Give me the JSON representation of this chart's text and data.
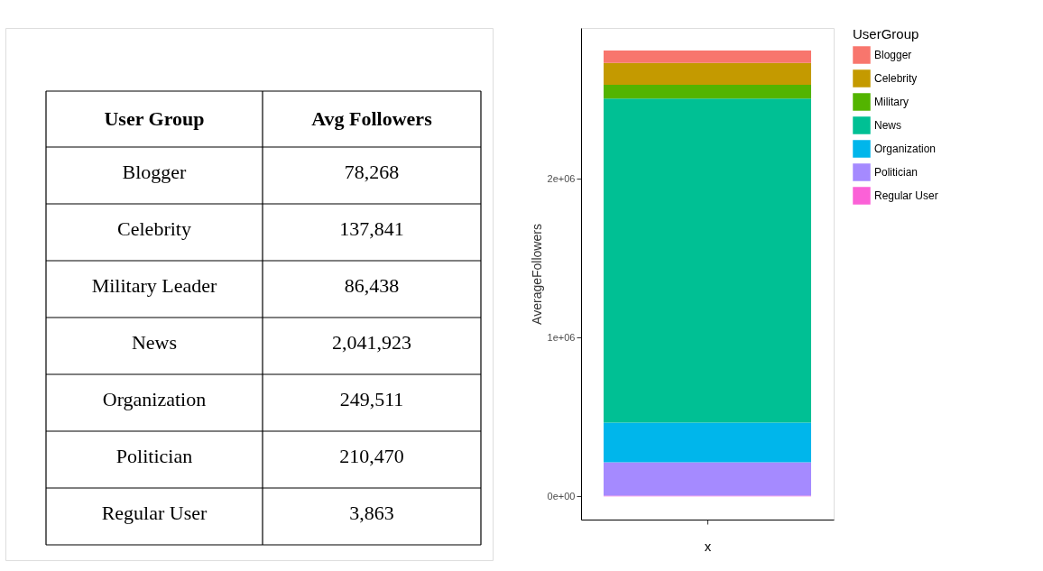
{
  "chart_data": [
    {
      "type": "other",
      "annotations": [
        "User Group",
        "Avg Followers",
        "Blogger",
        "78,268",
        "Celebrity",
        "137,841",
        "Military Leader",
        "86,438",
        "News",
        "2,041,923",
        "Organization",
        "249,511",
        "Politician",
        "210,470",
        "Regular User",
        "3,863"
      ]
    },
    {
      "type": "bar",
      "stacked": true,
      "categories": [
        null
      ],
      "xlabel": "x",
      "ylabel": "AverageFollowers",
      "legend_title": "UserGroup",
      "legend": "right",
      "grid": false,
      "ylim": [
        -147000,
        2950000
      ],
      "yticks": [
        {
          "value": 0,
          "label": "0e+00"
        },
        {
          "value": 1000000,
          "label": "1e+06"
        },
        {
          "value": 2000000,
          "label": "2e+06"
        }
      ],
      "series": [
        {
          "name": "Regular User",
          "color": "#fb61d7",
          "values": [
            3863
          ]
        },
        {
          "name": "Politician",
          "color": "#a58aff",
          "values": [
            210470
          ]
        },
        {
          "name": "Organization",
          "color": "#00b6eb",
          "values": [
            249511
          ]
        },
        {
          "name": "News",
          "color": "#00c094",
          "values": [
            2041923
          ]
        },
        {
          "name": "Military",
          "color": "#53b400",
          "values": [
            86438
          ]
        },
        {
          "name": "Celebrity",
          "color": "#c49a00",
          "values": [
            137841
          ]
        },
        {
          "name": "Blogger",
          "color": "#f8766d",
          "values": [
            78268
          ]
        }
      ]
    }
  ]
}
